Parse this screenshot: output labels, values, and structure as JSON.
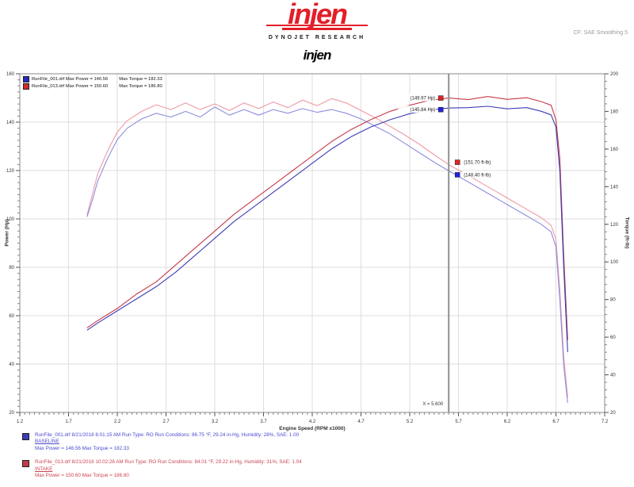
{
  "header": {
    "brand": "injen",
    "brand_color": "#e31e28",
    "dynojet": "DYNOJET RESEARCH",
    "corner_note": "CF: SAE   Smoothing 5",
    "title": "injen"
  },
  "legend_top": {
    "rows": [
      {
        "id": "run001",
        "swatch_color": "#2a2ac0",
        "file": "RunFile_001.drf",
        "max_power_label": "Max Power = 146.56",
        "max_torque_label": "Max Torque = 182.33"
      },
      {
        "id": "run013",
        "swatch_color": "#d02a2a",
        "file": "RunFile_013.drf",
        "max_power_label": "Max Power = 150.60",
        "max_torque_label": "Max Torque = 186.80"
      }
    ]
  },
  "legend_bottom": {
    "entries": [
      {
        "id": "run001",
        "swatch_color": "#3c3cb4",
        "text_color": "#4a4ad0",
        "line1": "RunFile_001.drf   8/21/2018 6:01:15 AM   Run Type: RO   Run Conditions: 86.75 °F, 29.24 in-Hg, Humidity: 28%, SAE: 1.00",
        "line2": "BASELINE",
        "line3": "Max Power = 146.56   Max Torque = 182.33"
      },
      {
        "id": "run013",
        "swatch_color": "#c53a4b",
        "text_color": "#cc4455",
        "line1": "RunFile_013.drf   8/21/2018 10:02:26 AM   Run Type: RO   Run Conditions: 84.01 °F, 29.22 in-Hg, Humidity: 31%, SAE: 1.04",
        "line2": "INTAKE",
        "line3": "Max Power = 150.60   Max Torque = 186.80"
      }
    ]
  },
  "chart_data": {
    "type": "line",
    "title": "injen",
    "xlabel": "Engine Speed (RPM x1000)",
    "ylabel_left": "Power (Hp)",
    "ylabel_right": "Torque (ft-lb)",
    "x_range": [
      1.2,
      7.2
    ],
    "x_major_ticks": [
      1.2,
      1.7,
      2.2,
      2.7,
      3.2,
      3.7,
      4.2,
      4.7,
      5.2,
      5.7,
      6.2,
      6.7,
      7.2
    ],
    "power_axis": {
      "min": 20,
      "max": 160,
      "ticks": [
        160,
        140,
        120,
        100,
        80,
        60,
        40,
        20
      ]
    },
    "torque_axis": {
      "min": 20,
      "max": 200,
      "ticks": [
        200,
        180,
        160,
        140,
        120,
        100,
        80,
        60,
        40,
        20
      ]
    },
    "grid": true,
    "legend_position": "top-left",
    "cursor": {
      "x": 5.6,
      "label": "X = 5.600"
    },
    "callouts": [
      {
        "id": "power-run013",
        "text": "(149.97 Hp)",
        "marker_color": "#e02222",
        "side": "left",
        "axis": "power",
        "value": 149.97,
        "dy": 0
      },
      {
        "id": "power-run001",
        "text": "(145.84 Hp)",
        "marker_color": "#2222dd",
        "side": "left",
        "axis": "power",
        "value": 145.84,
        "dy": 2
      },
      {
        "id": "torque-run013",
        "text": "(151.70 ft-lb)",
        "marker_color": "#e02222",
        "side": "right",
        "axis": "torque",
        "value": 151.7,
        "dy": -3
      },
      {
        "id": "torque-run001",
        "text": "(148.40 ft-lb)",
        "marker_color": "#2222dd",
        "side": "right",
        "axis": "torque",
        "value": 148.4,
        "dy": 5
      }
    ],
    "series": [
      {
        "id": "run013-torque",
        "name": "RunFile_013.drf Torque",
        "axis": "torque",
        "color": "#ef9aa4",
        "points": [
          [
            1.89,
            125
          ],
          [
            1.95,
            137
          ],
          [
            2.0,
            147
          ],
          [
            2.1,
            159
          ],
          [
            2.2,
            169
          ],
          [
            2.3,
            175
          ],
          [
            2.45,
            180
          ],
          [
            2.6,
            183.5
          ],
          [
            2.75,
            181
          ],
          [
            2.9,
            184.5
          ],
          [
            3.05,
            181
          ],
          [
            3.2,
            184
          ],
          [
            3.35,
            180.5
          ],
          [
            3.5,
            184.5
          ],
          [
            3.65,
            181.5
          ],
          [
            3.8,
            185
          ],
          [
            3.95,
            182
          ],
          [
            4.1,
            186
          ],
          [
            4.25,
            183
          ],
          [
            4.4,
            186.8
          ],
          [
            4.55,
            184.5
          ],
          [
            4.7,
            180.5
          ],
          [
            4.85,
            176.5
          ],
          [
            5.0,
            172
          ],
          [
            5.15,
            167.5
          ],
          [
            5.3,
            162.5
          ],
          [
            5.45,
            157
          ],
          [
            5.6,
            151.7
          ],
          [
            5.8,
            146
          ],
          [
            6.0,
            140
          ],
          [
            6.2,
            134
          ],
          [
            6.4,
            128
          ],
          [
            6.55,
            123.5
          ],
          [
            6.65,
            119.5
          ],
          [
            6.7,
            112
          ],
          [
            6.74,
            85
          ],
          [
            6.78,
            50
          ],
          [
            6.82,
            28
          ]
        ]
      },
      {
        "id": "run001-torque",
        "name": "RunFile_001.drf Torque",
        "axis": "torque",
        "color": "#8e8edd",
        "points": [
          [
            1.89,
            124
          ],
          [
            1.95,
            134
          ],
          [
            2.0,
            143
          ],
          [
            2.1,
            155
          ],
          [
            2.2,
            165
          ],
          [
            2.3,
            171
          ],
          [
            2.45,
            176
          ],
          [
            2.6,
            179
          ],
          [
            2.75,
            177
          ],
          [
            2.9,
            180
          ],
          [
            3.05,
            177
          ],
          [
            3.2,
            182.33
          ],
          [
            3.35,
            178
          ],
          [
            3.5,
            181
          ],
          [
            3.65,
            178
          ],
          [
            3.8,
            181
          ],
          [
            3.95,
            179
          ],
          [
            4.1,
            181.5
          ],
          [
            4.25,
            179.5
          ],
          [
            4.4,
            181
          ],
          [
            4.55,
            179
          ],
          [
            4.7,
            176
          ],
          [
            4.85,
            172
          ],
          [
            5.0,
            168
          ],
          [
            5.15,
            163
          ],
          [
            5.3,
            158
          ],
          [
            5.45,
            153
          ],
          [
            5.6,
            148.4
          ],
          [
            5.8,
            142.5
          ],
          [
            6.0,
            136.5
          ],
          [
            6.2,
            130.5
          ],
          [
            6.4,
            124.5
          ],
          [
            6.55,
            120
          ],
          [
            6.65,
            116
          ],
          [
            6.7,
            108
          ],
          [
            6.74,
            80
          ],
          [
            6.78,
            45
          ],
          [
            6.82,
            25
          ]
        ]
      },
      {
        "id": "run013-power",
        "name": "RunFile_013.drf Power",
        "axis": "power",
        "color": "#c53a4b",
        "points": [
          [
            1.89,
            55
          ],
          [
            2.0,
            58
          ],
          [
            2.2,
            63
          ],
          [
            2.4,
            69
          ],
          [
            2.6,
            74
          ],
          [
            2.8,
            81
          ],
          [
            3.0,
            88
          ],
          [
            3.2,
            95
          ],
          [
            3.4,
            102
          ],
          [
            3.6,
            108
          ],
          [
            3.8,
            114
          ],
          [
            4.0,
            120
          ],
          [
            4.2,
            126
          ],
          [
            4.4,
            132
          ],
          [
            4.6,
            137
          ],
          [
            4.8,
            141
          ],
          [
            5.0,
            144.5
          ],
          [
            5.2,
            147
          ],
          [
            5.4,
            149
          ],
          [
            5.6,
            149.97
          ],
          [
            5.8,
            149.3
          ],
          [
            6.0,
            150.6
          ],
          [
            6.2,
            149.4
          ],
          [
            6.4,
            150.1
          ],
          [
            6.55,
            148.5
          ],
          [
            6.65,
            147
          ],
          [
            6.7,
            141
          ],
          [
            6.74,
            125
          ],
          [
            6.78,
            85
          ],
          [
            6.82,
            50
          ]
        ]
      },
      {
        "id": "run001-power",
        "name": "RunFile_001.drf Power",
        "axis": "power",
        "color": "#3c3cb4",
        "points": [
          [
            1.89,
            54
          ],
          [
            2.0,
            57
          ],
          [
            2.2,
            62
          ],
          [
            2.4,
            67
          ],
          [
            2.6,
            72
          ],
          [
            2.8,
            78
          ],
          [
            3.0,
            85
          ],
          [
            3.2,
            92
          ],
          [
            3.4,
            99
          ],
          [
            3.6,
            105
          ],
          [
            3.8,
            111
          ],
          [
            4.0,
            117
          ],
          [
            4.2,
            123
          ],
          [
            4.4,
            129
          ],
          [
            4.6,
            134
          ],
          [
            4.8,
            138
          ],
          [
            5.0,
            141
          ],
          [
            5.2,
            143.5
          ],
          [
            5.4,
            145
          ],
          [
            5.6,
            145.84
          ],
          [
            5.8,
            146
          ],
          [
            6.0,
            146.56
          ],
          [
            6.2,
            145.5
          ],
          [
            6.4,
            146
          ],
          [
            6.55,
            144.5
          ],
          [
            6.65,
            143
          ],
          [
            6.7,
            138
          ],
          [
            6.74,
            120
          ],
          [
            6.78,
            80
          ],
          [
            6.82,
            45
          ]
        ]
      }
    ]
  }
}
